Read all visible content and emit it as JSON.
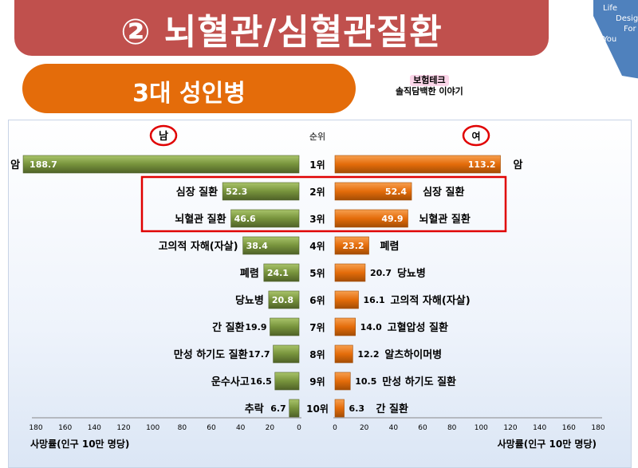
{
  "header": {
    "title": "② 뇌혈관/심혈관질환",
    "subtitle": "3대 성인병",
    "badge_line1": "보험테크",
    "badge_line2": "솔직담백한 이야기",
    "logo_lines": [
      "Life",
      "Desig",
      "For",
      "You"
    ]
  },
  "colors": {
    "title_bg": "#c0504d",
    "subtitle_bg": "#e46c0a",
    "male_bar": "#77933c",
    "female_bar": "#e46c0a",
    "highlight_box": "#e00000",
    "logo_bg": "#4f81bd"
  },
  "chart_data": {
    "type": "bar",
    "left_header": "남",
    "center_header": "순위",
    "right_header": "여",
    "ranks": [
      "1위",
      "2위",
      "3위",
      "4위",
      "5위",
      "6위",
      "7위",
      "8위",
      "9위",
      "10위"
    ],
    "series": [
      {
        "name": "남",
        "categories": [
          "암",
          "심장 질환",
          "뇌혈관 질환",
          "고의적 자해(자살)",
          "폐렴",
          "당뇨병",
          "간 질환",
          "만성 하기도 질환",
          "운수사고",
          "추락"
        ],
        "values": [
          188.7,
          52.3,
          46.6,
          38.4,
          24.1,
          20.8,
          19.9,
          17.7,
          16.5,
          6.7
        ]
      },
      {
        "name": "여",
        "categories": [
          "암",
          "심장 질환",
          "뇌혈관 질환",
          "폐렴",
          "당뇨병",
          "고의적 자해(자살)",
          "고혈압성 질환",
          "알츠하이머병",
          "만성 하기도 질환",
          "간 질환"
        ],
        "values": [
          113.2,
          52.4,
          49.9,
          23.2,
          20.7,
          16.1,
          14.0,
          12.2,
          10.5,
          6.3
        ]
      }
    ],
    "value_labels_male": [
      "188.7",
      "52.3",
      "46.6",
      "38.4",
      "24.1",
      "20.8",
      "19.9",
      "17.7",
      "16.5",
      "6.7"
    ],
    "value_labels_female": [
      "113.2",
      "52.4",
      "49.9",
      "23.2",
      "20.7",
      "16.1",
      "14.0",
      "12.2",
      "10.5",
      "6.3"
    ],
    "highlighted_ranks": [
      "2위",
      "3위"
    ],
    "x_ticks_male": [
      "180",
      "160",
      "140",
      "120",
      "100",
      "80",
      "60",
      "40",
      "20",
      "0"
    ],
    "x_ticks_female": [
      "0",
      "20",
      "40",
      "60",
      "80",
      "100",
      "120",
      "140",
      "160",
      "180"
    ],
    "xlabel_male": "사망률(인구 10만 명당)",
    "xlabel_female": "사망률(인구 10만 명당)",
    "xlim": [
      0,
      180
    ]
  }
}
